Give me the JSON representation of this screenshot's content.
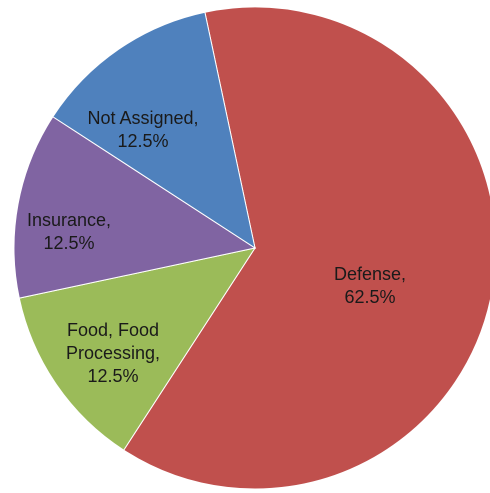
{
  "chart_data": {
    "type": "pie",
    "title": "",
    "slices": [
      {
        "label": "Defense",
        "value": 62.5,
        "value_text": "62.5%",
        "color": "#C0504D"
      },
      {
        "label": "Food, Food Processing",
        "value": 12.5,
        "value_text": "12.5%",
        "color": "#9BBB59"
      },
      {
        "label": "Insurance",
        "value": 12.5,
        "value_text": "12.5%",
        "color": "#8064A2"
      },
      {
        "label": "Not Assigned",
        "value": 12.5,
        "value_text": "12.5%",
        "color": "#4F81BD"
      }
    ],
    "legend": "none",
    "data_labels": "inside"
  }
}
